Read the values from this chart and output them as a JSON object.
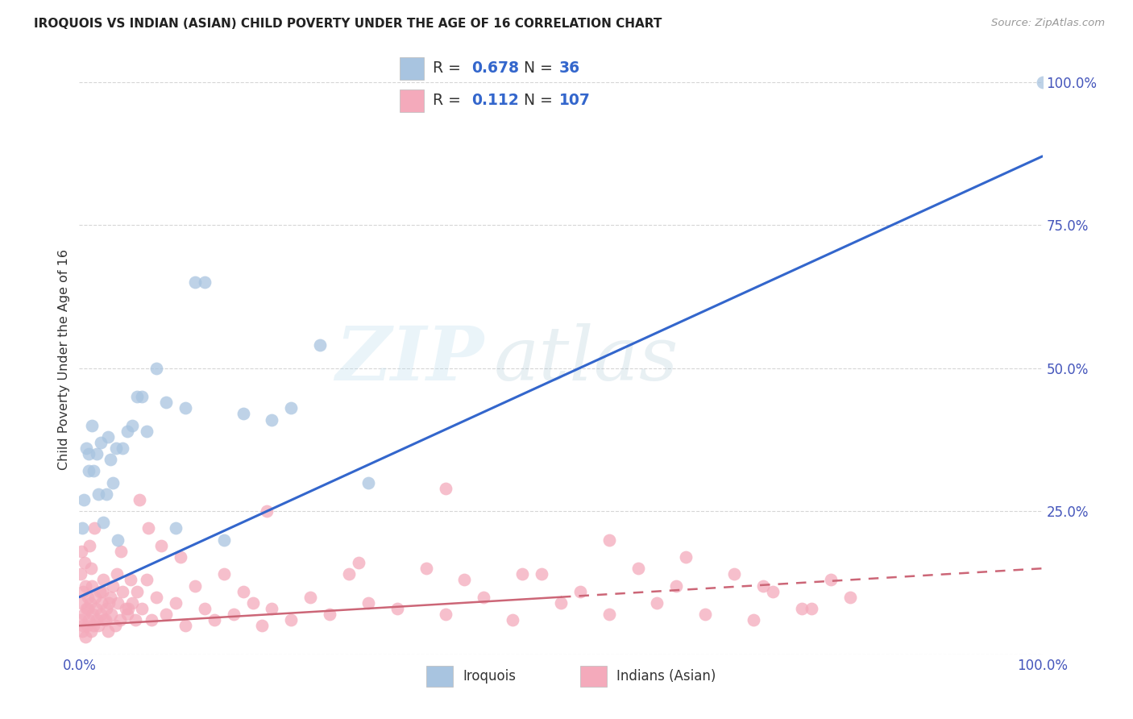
{
  "title": "IROQUOIS VS INDIAN (ASIAN) CHILD POVERTY UNDER THE AGE OF 16 CORRELATION CHART",
  "source": "Source: ZipAtlas.com",
  "ylabel": "Child Poverty Under the Age of 16",
  "watermark_zip": "ZIP",
  "watermark_atlas": "atlas",
  "legend_blue_R": "0.678",
  "legend_blue_N": "36",
  "legend_pink_R": "0.112",
  "legend_pink_N": "107",
  "blue_label": "Iroquois",
  "pink_label": "Indians (Asian)",
  "blue_scatter_color": "#A8C4E0",
  "pink_scatter_color": "#F4AABB",
  "blue_line_color": "#3366CC",
  "pink_line_color": "#CC6677",
  "axis_tick_color": "#4455BB",
  "background_color": "#FFFFFF",
  "grid_color": "#CCCCCC",
  "title_color": "#222222",
  "source_color": "#999999",
  "ylabel_color": "#333333",
  "legend_text_color": "#333333",
  "legend_rn_color": "#3366CC",
  "blue_x": [
    0.3,
    0.5,
    0.7,
    1.0,
    1.0,
    1.3,
    1.5,
    1.8,
    2.0,
    2.2,
    2.5,
    2.8,
    3.0,
    3.2,
    3.5,
    3.8,
    4.0,
    4.5,
    5.0,
    5.5,
    6.0,
    6.5,
    7.0,
    8.0,
    9.0,
    10.0,
    11.0,
    12.0,
    13.0,
    15.0,
    17.0,
    20.0,
    22.0,
    25.0,
    30.0,
    100.0
  ],
  "blue_y": [
    22.0,
    27.0,
    36.0,
    35.0,
    32.0,
    40.0,
    32.0,
    35.0,
    28.0,
    37.0,
    23.0,
    28.0,
    38.0,
    34.0,
    30.0,
    36.0,
    20.0,
    36.0,
    39.0,
    40.0,
    45.0,
    45.0,
    39.0,
    50.0,
    44.0,
    22.0,
    43.0,
    65.0,
    65.0,
    20.0,
    42.0,
    41.0,
    43.0,
    54.0,
    30.0,
    100.0
  ],
  "pink_x": [
    0.1,
    0.2,
    0.3,
    0.4,
    0.5,
    0.6,
    0.7,
    0.8,
    0.9,
    1.0,
    1.1,
    1.2,
    1.3,
    1.4,
    1.5,
    1.6,
    1.7,
    1.8,
    2.0,
    2.1,
    2.2,
    2.3,
    2.5,
    2.6,
    2.8,
    3.0,
    3.2,
    3.3,
    3.5,
    3.7,
    4.0,
    4.2,
    4.5,
    4.8,
    5.0,
    5.3,
    5.5,
    5.8,
    6.0,
    6.5,
    7.0,
    7.5,
    8.0,
    9.0,
    10.0,
    11.0,
    12.0,
    13.0,
    14.0,
    15.0,
    16.0,
    17.0,
    18.0,
    19.0,
    20.0,
    22.0,
    24.0,
    26.0,
    28.0,
    30.0,
    33.0,
    36.0,
    38.0,
    40.0,
    42.0,
    45.0,
    48.0,
    50.0,
    52.0,
    55.0,
    58.0,
    60.0,
    62.0,
    65.0,
    68.0,
    70.0,
    72.0,
    75.0,
    78.0,
    80.0,
    0.15,
    0.25,
    0.35,
    0.55,
    0.65,
    0.85,
    1.05,
    1.25,
    1.55,
    2.4,
    2.7,
    3.1,
    3.9,
    4.3,
    5.1,
    6.2,
    7.2,
    8.5,
    10.5,
    19.5,
    29.0,
    38.0,
    46.0,
    55.0,
    63.0,
    71.0,
    76.0
  ],
  "pink_y": [
    6.0,
    9.0,
    4.0,
    11.0,
    7.0,
    3.0,
    8.0,
    5.0,
    10.0,
    6.0,
    9.0,
    4.0,
    12.0,
    7.0,
    5.0,
    10.0,
    8.0,
    6.0,
    5.0,
    11.0,
    7.0,
    9.0,
    13.0,
    6.0,
    8.0,
    4.0,
    10.0,
    7.0,
    12.0,
    5.0,
    9.0,
    6.0,
    11.0,
    8.0,
    7.0,
    13.0,
    9.0,
    6.0,
    11.0,
    8.0,
    13.0,
    6.0,
    10.0,
    7.0,
    9.0,
    5.0,
    12.0,
    8.0,
    6.0,
    14.0,
    7.0,
    11.0,
    9.0,
    5.0,
    8.0,
    6.0,
    10.0,
    7.0,
    14.0,
    9.0,
    8.0,
    15.0,
    7.0,
    13.0,
    10.0,
    6.0,
    14.0,
    9.0,
    11.0,
    7.0,
    15.0,
    9.0,
    12.0,
    7.0,
    14.0,
    6.0,
    11.0,
    8.0,
    13.0,
    10.0,
    14.0,
    18.0,
    5.0,
    16.0,
    12.0,
    8.0,
    19.0,
    15.0,
    22.0,
    11.0,
    6.0,
    9.0,
    14.0,
    18.0,
    8.0,
    27.0,
    22.0,
    19.0,
    17.0,
    25.0,
    16.0,
    29.0,
    14.0,
    20.0,
    17.0,
    12.0,
    8.0
  ],
  "blue_line_x0": 0,
  "blue_line_y0": 10,
  "blue_line_x1": 100,
  "blue_line_y1": 87,
  "pink_line_solid_x0": 0,
  "pink_line_solid_y0": 5,
  "pink_line_solid_x1": 50,
  "pink_line_solid_y1": 10,
  "pink_line_dash_x0": 50,
  "pink_line_dash_y0": 10,
  "pink_line_dash_x1": 100,
  "pink_line_dash_y1": 15,
  "xlim": [
    0,
    100
  ],
  "ylim": [
    0,
    103
  ],
  "yticks": [
    0,
    25,
    50,
    75,
    100
  ],
  "ytick_labels": [
    "",
    "25.0%",
    "50.0%",
    "75.0%",
    "100.0%"
  ],
  "xticks": [
    0,
    100
  ],
  "xtick_labels": [
    "0.0%",
    "100.0%"
  ]
}
